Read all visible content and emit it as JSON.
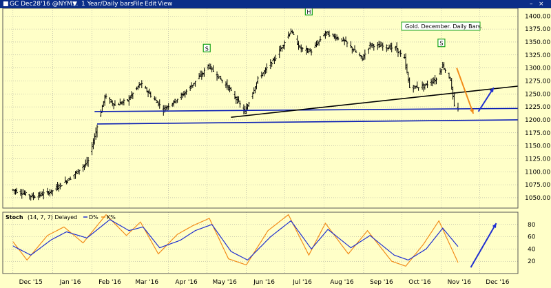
{
  "window": {
    "title": "GC Dec28'16 @NYM...",
    "interval": "1 Year/Daily bars",
    "menu": [
      "File",
      "Edit",
      "View"
    ]
  },
  "colors": {
    "background": "#ffffc8",
    "bars": "#000000",
    "trendline_blue": "#0b1fb5",
    "trendline_black": "#000000",
    "arrow_orange": "#f28c1a",
    "arrow_blue": "#1f2fd0",
    "pattern_label_border": "#1aa31a",
    "titlebar": "#0b2e88",
    "stoch_d": "#1f2fd0",
    "stoch_k": "#f28c1a"
  },
  "chart_data": [
    {
      "type": "ohlc",
      "annotation": "Gold. December. Daily Bars.",
      "x_tick_labels": [
        "Dec '15",
        "Jan '16",
        "Feb '16",
        "Mar '16",
        "Apr '16",
        "May '16",
        "Jun '16",
        "Jul '16",
        "Aug '16",
        "Sep '16",
        "Oct '16",
        "Nov '16",
        "Dec '16"
      ],
      "y_tick_labels": [
        1050,
        1075,
        1100,
        1125,
        1150,
        1175,
        1200,
        1225,
        1250,
        1275,
        1300,
        1325,
        1350,
        1375,
        1400
      ],
      "ylim": [
        1030,
        1415
      ],
      "pattern_labels": [
        {
          "text": "S",
          "date": "2016-05-01",
          "price": 1335
        },
        {
          "text": "H",
          "date": "2016-07-20",
          "price": 1406
        },
        {
          "text": "S",
          "date": "2016-11-01",
          "price": 1345
        }
      ],
      "anchor_points": [
        [
          "2015-12-01",
          1065
        ],
        [
          "2015-12-17",
          1052
        ],
        [
          "2015-12-31",
          1062
        ],
        [
          "2016-01-15",
          1088
        ],
        [
          "2016-01-29",
          1120
        ],
        [
          "2016-02-11",
          1245
        ],
        [
          "2016-02-19",
          1228
        ],
        [
          "2016-02-29",
          1238
        ],
        [
          "2016-03-10",
          1270
        ],
        [
          "2016-03-28",
          1220
        ],
        [
          "2016-04-13",
          1250
        ],
        [
          "2016-04-28",
          1290
        ],
        [
          "2016-05-02",
          1305
        ],
        [
          "2016-05-18",
          1262
        ],
        [
          "2016-05-31",
          1215
        ],
        [
          "2016-06-10",
          1278
        ],
        [
          "2016-06-24",
          1320
        ],
        [
          "2016-07-06",
          1372
        ],
        [
          "2016-07-13",
          1338
        ],
        [
          "2016-07-22",
          1332
        ],
        [
          "2016-08-02",
          1368
        ],
        [
          "2016-08-17",
          1352
        ],
        [
          "2016-08-31",
          1318
        ],
        [
          "2016-09-06",
          1345
        ],
        [
          "2016-09-26",
          1338
        ],
        [
          "2016-10-03",
          1318
        ],
        [
          "2016-10-07",
          1262
        ],
        [
          "2016-10-18",
          1265
        ],
        [
          "2016-10-28",
          1278
        ],
        [
          "2016-11-02",
          1305
        ],
        [
          "2016-11-08",
          1278
        ],
        [
          "2016-11-11",
          1226
        ],
        [
          "2016-11-14",
          1222
        ]
      ],
      "trendlines": [
        {
          "color": "#0b1fb5",
          "from": [
            "2016-02-03",
            1216
          ],
          "to": [
            "2016-12-31",
            1222
          ]
        },
        {
          "color": "#0b1fb5",
          "from": [
            "2016-02-05",
            1192
          ],
          "to": [
            "2016-12-31",
            1200
          ]
        },
        {
          "color": "#000000",
          "from": [
            "2016-05-20",
            1205
          ],
          "to": [
            "2016-12-31",
            1265
          ]
        }
      ],
      "arrows": [
        {
          "color": "#f28c1a",
          "from": [
            "2016-11-13",
            1300
          ],
          "to": [
            "2016-11-26",
            1212
          ]
        },
        {
          "color": "#1f2fd0",
          "from": [
            "2016-11-30",
            1216
          ],
          "to": [
            "2016-12-12",
            1262
          ]
        }
      ]
    },
    {
      "type": "line",
      "indicator": "Stoch",
      "params": "(14, 7, 7) Delayed",
      "legend": [
        "D%",
        "K%"
      ],
      "y_tick_labels": [
        20,
        40,
        60,
        80
      ],
      "ylim": [
        0,
        100
      ],
      "d_anchors": [
        [
          "2015-12-01",
          45
        ],
        [
          "2015-12-15",
          30
        ],
        [
          "2015-12-31",
          55
        ],
        [
          "2016-01-12",
          68
        ],
        [
          "2016-01-28",
          58
        ],
        [
          "2016-02-15",
          88
        ],
        [
          "2016-03-01",
          70
        ],
        [
          "2016-03-12",
          76
        ],
        [
          "2016-03-25",
          42
        ],
        [
          "2016-04-10",
          54
        ],
        [
          "2016-04-22",
          70
        ],
        [
          "2016-05-05",
          80
        ],
        [
          "2016-05-20",
          36
        ],
        [
          "2016-06-02",
          22
        ],
        [
          "2016-06-20",
          60
        ],
        [
          "2016-07-06",
          86
        ],
        [
          "2016-07-22",
          40
        ],
        [
          "2016-08-04",
          72
        ],
        [
          "2016-08-22",
          42
        ],
        [
          "2016-09-06",
          62
        ],
        [
          "2016-09-25",
          30
        ],
        [
          "2016-10-06",
          22
        ],
        [
          "2016-10-20",
          40
        ],
        [
          "2016-11-02",
          74
        ],
        [
          "2016-11-14",
          44
        ]
      ],
      "k_anchors": [
        [
          "2015-12-01",
          52
        ],
        [
          "2015-12-12",
          22
        ],
        [
          "2015-12-28",
          62
        ],
        [
          "2016-01-10",
          76
        ],
        [
          "2016-01-25",
          50
        ],
        [
          "2016-02-12",
          96
        ],
        [
          "2016-02-28",
          62
        ],
        [
          "2016-03-10",
          84
        ],
        [
          "2016-03-24",
          32
        ],
        [
          "2016-04-08",
          64
        ],
        [
          "2016-04-20",
          78
        ],
        [
          "2016-05-03",
          90
        ],
        [
          "2016-05-18",
          24
        ],
        [
          "2016-06-01",
          14
        ],
        [
          "2016-06-18",
          70
        ],
        [
          "2016-07-04",
          96
        ],
        [
          "2016-07-20",
          30
        ],
        [
          "2016-08-02",
          82
        ],
        [
          "2016-08-20",
          32
        ],
        [
          "2016-09-04",
          70
        ],
        [
          "2016-09-23",
          20
        ],
        [
          "2016-10-04",
          12
        ],
        [
          "2016-10-18",
          48
        ],
        [
          "2016-10-30",
          86
        ],
        [
          "2016-11-14",
          18
        ]
      ],
      "arrow": {
        "color": "#1f2fd0",
        "from": [
          "2016-11-24",
          10
        ],
        "to": [
          "2016-12-14",
          82
        ]
      }
    }
  ]
}
